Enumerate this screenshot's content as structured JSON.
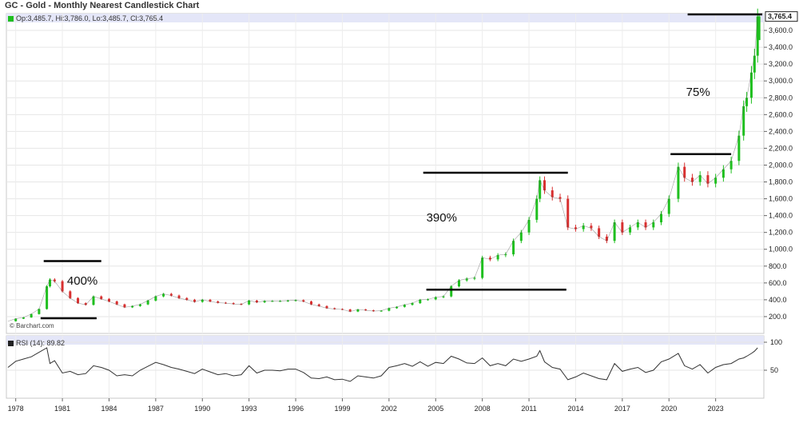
{
  "title": "GC - Gold - Monthly Nearest Candlestick Chart",
  "ohlc_legend": "Op:3,485.7, Hi:3,786.0, Lo:3,485.7, Cl:3,765.4",
  "rsi_legend": "RSI (14): 89.82",
  "credit": "© Barchart.com",
  "last_price_label": "3,765.4",
  "colors": {
    "up": "#1fbf1f",
    "down": "#d83030",
    "rsi": "#333333",
    "band": "#e4e6f8",
    "annot_line": "#000000"
  },
  "annotations": [
    {
      "text": "400%",
      "x": 1981.3,
      "y": 615
    },
    {
      "text": "390%",
      "x": 2004.4,
      "y": 1370
    },
    {
      "text": "75%",
      "x": 2021.1,
      "y": 2860
    }
  ],
  "chart_data": [
    {
      "type": "candlestick",
      "title": "GC - Gold - Monthly Nearest Candlestick Chart",
      "x_ticks": [
        "1978",
        "1981",
        "1984",
        "1987",
        "1990",
        "1993",
        "1996",
        "1999",
        "2002",
        "2005",
        "2008",
        "2011",
        "2014",
        "2017",
        "2020",
        "2023"
      ],
      "y_ticks": [
        "200.0",
        "400.0",
        "600.0",
        "800.0",
        "1,000.0",
        "1,200.0",
        "1,400.0",
        "1,600.0",
        "1,800.0",
        "2,000.0",
        "2,200.0",
        "2,400.0",
        "2,600.0",
        "2,800.0",
        "3,000.0",
        "3,200.0",
        "3,400.0",
        "3,600.0"
      ],
      "xlim": [
        1977.4,
        2026.1
      ],
      "ylim": [
        0,
        3800
      ],
      "last": {
        "open": 3485.7,
        "high": 3786.0,
        "low": 3485.7,
        "close": 3765.4
      },
      "x_years": [
        1977.5,
        1978.0,
        1978.5,
        1979.0,
        1979.5,
        1980.0,
        1980.2,
        1980.5,
        1981.0,
        1981.5,
        1982.0,
        1982.5,
        1983.0,
        1983.5,
        1984.0,
        1984.5,
        1985.0,
        1985.5,
        1986.0,
        1986.5,
        1987.0,
        1987.5,
        1988.0,
        1988.5,
        1989.0,
        1989.5,
        1990.0,
        1990.5,
        1991.0,
        1991.5,
        1992.0,
        1992.5,
        1993.0,
        1993.5,
        1994.0,
        1994.5,
        1995.0,
        1995.5,
        1996.0,
        1996.5,
        1997.0,
        1997.5,
        1998.0,
        1998.5,
        1999.0,
        1999.5,
        2000.0,
        2000.5,
        2001.0,
        2001.5,
        2002.0,
        2002.5,
        2003.0,
        2003.5,
        2004.0,
        2004.5,
        2005.0,
        2005.5,
        2006.0,
        2006.5,
        2007.0,
        2007.5,
        2008.0,
        2008.5,
        2009.0,
        2009.5,
        2010.0,
        2010.5,
        2011.0,
        2011.5,
        2011.7,
        2012.0,
        2012.5,
        2013.0,
        2013.5,
        2014.0,
        2014.5,
        2015.0,
        2015.5,
        2016.0,
        2016.5,
        2017.0,
        2017.5,
        2018.0,
        2018.5,
        2019.0,
        2019.5,
        2020.0,
        2020.6,
        2021.0,
        2021.5,
        2022.0,
        2022.5,
        2023.0,
        2023.5,
        2024.0,
        2024.5,
        2024.8,
        2025.0,
        2025.3,
        2025.5,
        2025.7
      ],
      "closes": [
        145,
        175,
        190,
        230,
        290,
        560,
        640,
        620,
        500,
        420,
        360,
        340,
        440,
        410,
        380,
        345,
        310,
        325,
        345,
        390,
        440,
        470,
        450,
        420,
        400,
        375,
        400,
        380,
        365,
        360,
        350,
        345,
        390,
        370,
        385,
        385,
        385,
        390,
        395,
        380,
        345,
        325,
        300,
        290,
        285,
        260,
        285,
        275,
        265,
        270,
        300,
        315,
        340,
        360,
        400,
        405,
        430,
        440,
        560,
        630,
        650,
        660,
        900,
        880,
        930,
        940,
        1100,
        1200,
        1350,
        1600,
        1820,
        1700,
        1620,
        1600,
        1260,
        1240,
        1280,
        1250,
        1150,
        1100,
        1320,
        1200,
        1260,
        1320,
        1260,
        1320,
        1420,
        1600,
        1980,
        1850,
        1800,
        1880,
        1780,
        1850,
        1950,
        2050,
        2350,
        2700,
        2800,
        3100,
        3300,
        3765
      ],
      "rsi": [
        55,
        66,
        70,
        74,
        82,
        90,
        62,
        67,
        45,
        48,
        42,
        44,
        58,
        55,
        50,
        40,
        42,
        40,
        50,
        57,
        64,
        60,
        55,
        52,
        48,
        44,
        52,
        47,
        42,
        44,
        40,
        42,
        58,
        45,
        50,
        50,
        49,
        52,
        52,
        46,
        36,
        35,
        38,
        33,
        34,
        30,
        40,
        38,
        36,
        40,
        55,
        58,
        62,
        57,
        65,
        57,
        64,
        62,
        75,
        70,
        63,
        62,
        72,
        58,
        62,
        58,
        70,
        66,
        70,
        75,
        85,
        65,
        55,
        52,
        33,
        38,
        45,
        40,
        35,
        33,
        62,
        48,
        52,
        55,
        46,
        50,
        65,
        70,
        80,
        58,
        52,
        60,
        45,
        55,
        60,
        62,
        70,
        72,
        75,
        80,
        84,
        90
      ],
      "annotation_lines": [
        [
          1979.8,
          1983.5,
          860
        ],
        [
          1979.6,
          1983.2,
          180
        ],
        [
          2004.2,
          2013.5,
          1910
        ],
        [
          2004.4,
          2013.4,
          520
        ],
        [
          2020.1,
          2024.0,
          2130
        ],
        [
          2021.2,
          2026.0,
          3790
        ]
      ]
    },
    {
      "type": "line",
      "title": "RSI (14): 89.82",
      "y_ticks": [
        "50",
        "100"
      ],
      "ylim": [
        0,
        100
      ]
    }
  ]
}
